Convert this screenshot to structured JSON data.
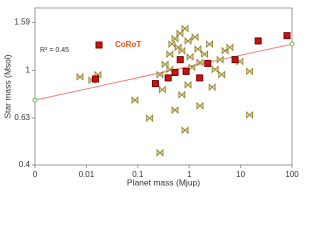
{
  "chart_data": {
    "type": "scatter",
    "x_label": "Planet mass (Mjup)",
    "y_label": "Star mass (Msol)",
    "annotation": "R² = 0.45",
    "xlog": true,
    "ylog": true,
    "xlim": [
      0.001,
      100
    ],
    "ylim": [
      0.4,
      1.83
    ],
    "xticks": [
      {
        "value": 0.001,
        "label": "0"
      },
      0.01,
      0.1,
      1,
      10,
      100
    ],
    "yticks": [
      0.4,
      0.63,
      1,
      1.59
    ],
    "series": [
      {
        "color": "#8a7a2a",
        "marker": "bowtie",
        "x": [
          0.0075,
          0.0128,
          0.0168,
          0.27,
          0.3,
          0.34,
          0.42,
          0.46,
          0.53,
          0.61,
          0.66,
          0.72,
          0.83,
          0.95,
          1.04,
          1.13,
          1.3,
          1.48,
          1.62,
          2.0,
          2.5,
          3.2,
          4.0,
          4.3,
          5.0,
          6.2,
          9.7,
          15,
          0.088,
          0.17,
          0.53,
          0.83,
          1.62,
          15,
          0.27,
          0.72,
          2.8,
          0.42,
          0.95
        ],
        "values": [
          0.94,
          0.91,
          0.96,
          0.96,
          0.83,
          1.06,
          1.17,
          1.29,
          1.36,
          1.25,
          1.43,
          1.21,
          1.5,
          1.33,
          1.14,
          1.03,
          1.38,
          1.23,
          1.08,
          1.17,
          1.29,
          1.01,
          1.11,
          0.96,
          1.21,
          1.25,
          1.09,
          0.99,
          0.75,
          0.63,
          0.68,
          0.56,
          0.71,
          0.65,
          0.45,
          0.79,
          0.85,
          1.01,
          0.87
        ]
      },
      {
        "name": "CoRoT",
        "color": "#cc1111",
        "marker": "square",
        "x": [
          0.015,
          0.22,
          0.39,
          0.53,
          0.67,
          0.87,
          1.6,
          2.3,
          7.8,
          22,
          80
        ],
        "values": [
          0.92,
          0.88,
          0.93,
          0.98,
          1.11,
          0.99,
          0.93,
          1.07,
          1.11,
          1.33,
          1.4
        ]
      }
    ],
    "fit_line": {
      "color": "#f08080",
      "end_color": "#66bb44",
      "x": [
        0.001,
        100
      ],
      "values": [
        0.75,
        1.29
      ]
    }
  }
}
